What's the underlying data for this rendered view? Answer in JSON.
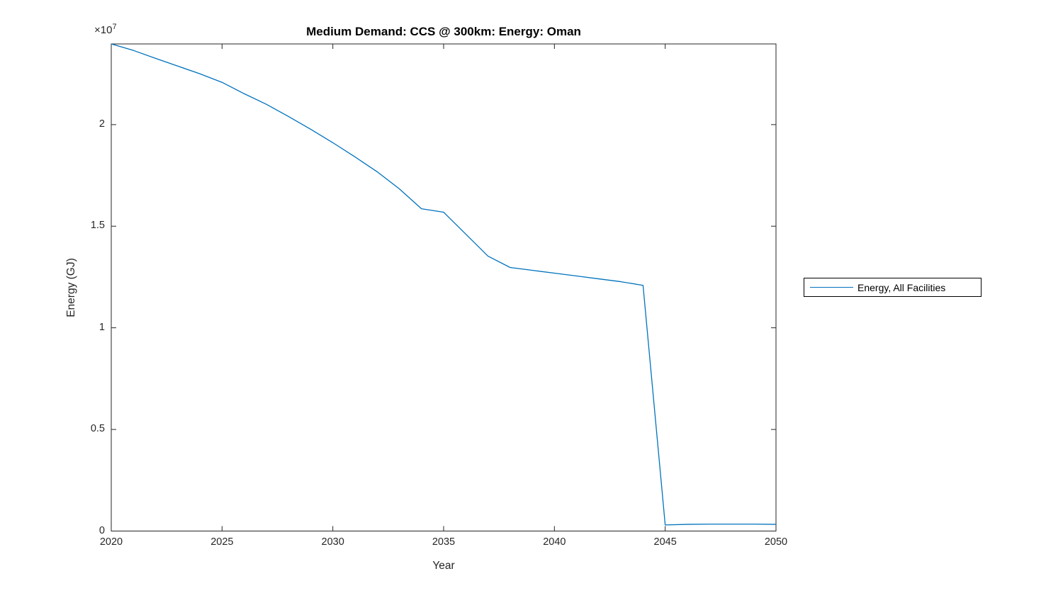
{
  "title": "Medium Demand: CCS @ 300km: Energy: Oman",
  "axes": {
    "xlabel": "Year",
    "ylabel": "Energy (GJ)",
    "y_exponent_base": "×10",
    "y_exponent_power": "7",
    "axis_color": "#262626",
    "tick_label_color": "#262626",
    "x_ticks": [
      {
        "value": 2020,
        "label": "2020"
      },
      {
        "value": 2025,
        "label": "2025"
      },
      {
        "value": 2030,
        "label": "2030"
      },
      {
        "value": 2035,
        "label": "2035"
      },
      {
        "value": 2040,
        "label": "2040"
      },
      {
        "value": 2045,
        "label": "2045"
      },
      {
        "value": 2050,
        "label": "2050"
      }
    ],
    "y_ticks": [
      {
        "value": 0,
        "label": "0"
      },
      {
        "value": 5000000,
        "label": "0.5"
      },
      {
        "value": 10000000,
        "label": "1"
      },
      {
        "value": 15000000,
        "label": "1.5"
      },
      {
        "value": 20000000,
        "label": "2"
      }
    ]
  },
  "legend": {
    "items": [
      {
        "label": "Energy, All Facilities",
        "color": "#0072BD"
      }
    ]
  },
  "chart_data": {
    "type": "line",
    "title": "Medium Demand: CCS @ 300km: Energy: Oman",
    "xlabel": "Year",
    "ylabel": "Energy (GJ)",
    "xlim": [
      2020,
      2050
    ],
    "ylim": [
      0,
      24000000
    ],
    "grid": false,
    "legend_position": "right-outside",
    "x": [
      2020,
      2021,
      2022,
      2023,
      2024,
      2025,
      2026,
      2027,
      2028,
      2029,
      2030,
      2031,
      2032,
      2033,
      2034,
      2035,
      2036,
      2037,
      2038,
      2039,
      2040,
      2041,
      2042,
      2043,
      2044,
      2045,
      2046,
      2047,
      2048,
      2049,
      2050
    ],
    "series": [
      {
        "name": "Energy, All Facilities",
        "color": "#0072BD",
        "values": [
          23970000,
          23650000,
          23260000,
          22880000,
          22500000,
          22080000,
          21520000,
          21000000,
          20400000,
          19770000,
          19110000,
          18410000,
          17680000,
          16840000,
          15860000,
          15690000,
          14610000,
          13530000,
          12970000,
          12830000,
          12690000,
          12550000,
          12410000,
          12270000,
          12090000,
          300000,
          330000,
          340000,
          340000,
          340000,
          330000
        ]
      }
    ]
  }
}
